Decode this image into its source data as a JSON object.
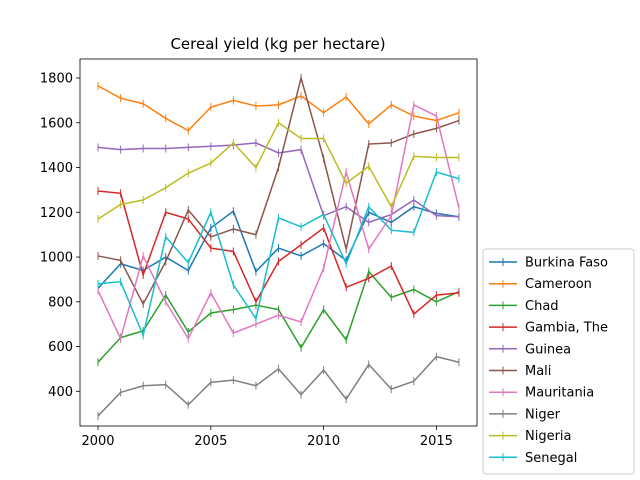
{
  "chart_data": {
    "type": "line",
    "title": "Cereal yield (kg per hectare)",
    "xlabel": "",
    "ylabel": "",
    "xlim": [
      1999.2,
      2016.8
    ],
    "ylim": [
      245,
      1885
    ],
    "xticks": [
      2000,
      2005,
      2010,
      2015
    ],
    "yticks": [
      400,
      600,
      800,
      1000,
      1200,
      1400,
      1600,
      1800
    ],
    "grid": false,
    "legend_position": "lower-right, outside the axes",
    "x": [
      2000,
      2001,
      2002,
      2003,
      2004,
      2005,
      2006,
      2007,
      2008,
      2009,
      2010,
      2011,
      2012,
      2013,
      2014,
      2015,
      2016
    ],
    "series": [
      {
        "name": "Burkina Faso",
        "color": "#1f77b4",
        "values": [
          860,
          970,
          940,
          1000,
          940,
          1130,
          1205,
          935,
          1040,
          1005,
          1060,
          985,
          1200,
          1155,
          1225,
          1195,
          1180
        ]
      },
      {
        "name": "Cameroon",
        "color": "#ff7f0e",
        "values": [
          1765,
          1710,
          1685,
          1620,
          1565,
          1670,
          1700,
          1675,
          1680,
          1720,
          1645,
          1715,
          1595,
          1680,
          1630,
          1610,
          1645
        ]
      },
      {
        "name": "Chad",
        "color": "#2ca02c",
        "values": [
          530,
          640,
          670,
          830,
          665,
          750,
          765,
          785,
          765,
          595,
          765,
          630,
          935,
          820,
          855,
          800,
          845
        ]
      },
      {
        "name": "Gambia, The",
        "color": "#d62728",
        "values": [
          1295,
          1285,
          920,
          1200,
          1170,
          1040,
          1025,
          800,
          980,
          1055,
          1130,
          865,
          905,
          960,
          745,
          830,
          840
        ]
      },
      {
        "name": "Guinea",
        "color": "#9467bd",
        "values": [
          1490,
          1480,
          1485,
          1485,
          1490,
          1495,
          1500,
          1510,
          1465,
          1480,
          1185,
          1225,
          1155,
          1190,
          1255,
          1185,
          1180
        ]
      },
      {
        "name": "Mali",
        "color": "#8c564b",
        "values": [
          1005,
          985,
          790,
          980,
          1210,
          1090,
          1125,
          1100,
          1400,
          1800,
          1440,
          1035,
          1505,
          1510,
          1550,
          1575,
          1610
        ]
      },
      {
        "name": "Mauritania",
        "color": "#e377c2",
        "values": [
          850,
          635,
          1005,
          800,
          635,
          840,
          660,
          700,
          740,
          710,
          950,
          1380,
          1035,
          1185,
          1680,
          1630,
          1220
        ]
      },
      {
        "name": "Niger",
        "color": "#7f7f7f",
        "values": [
          290,
          395,
          425,
          430,
          340,
          440,
          450,
          425,
          500,
          385,
          495,
          365,
          520,
          410,
          445,
          555,
          530
        ]
      },
      {
        "name": "Nigeria",
        "color": "#bcbd22",
        "values": [
          1170,
          1235,
          1255,
          1310,
          1375,
          1420,
          1510,
          1400,
          1600,
          1530,
          1530,
          1330,
          1405,
          1225,
          1450,
          1445,
          1445
        ]
      },
      {
        "name": "Senegal",
        "color": "#17becf",
        "values": [
          880,
          890,
          650,
          1090,
          975,
          1200,
          875,
          725,
          1175,
          1135,
          1190,
          970,
          1225,
          1120,
          1110,
          1380,
          1350
        ]
      }
    ]
  }
}
